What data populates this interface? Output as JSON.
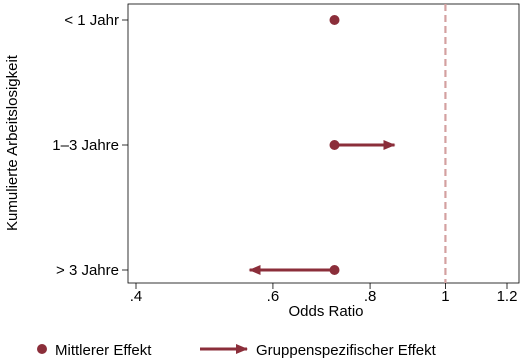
{
  "chart_data": {
    "type": "scatter",
    "title": "",
    "xlabel": "Odds Ratio",
    "ylabel": "Kumulierte Arbeitslosigkeit",
    "x_scale": "log",
    "xlim": [
      0.4,
      1.2
    ],
    "x_ticks": [
      {
        "value": 0.4,
        "label": ".4"
      },
      {
        "value": 0.6,
        "label": ".6"
      },
      {
        "value": 0.8,
        "label": ".8"
      },
      {
        "value": 1.0,
        "label": "1"
      },
      {
        "value": 1.2,
        "label": "1.2"
      }
    ],
    "categories": [
      "< 1 Jahr",
      "1–3 Jahre",
      "> 3 Jahre"
    ],
    "reference_line": {
      "x": 1.0,
      "style": "dashed",
      "color": "#d4a0a0"
    },
    "series": [
      {
        "name": "Mittlerer Effekt",
        "marker": "dot",
        "values": [
          0.72,
          0.72,
          0.72
        ]
      },
      {
        "name": "Gruppenspezifischer Effekt",
        "marker": "arrow",
        "from": [
          0.72,
          0.72,
          0.72
        ],
        "to": [
          0.72,
          0.86,
          0.56
        ]
      }
    ],
    "colors": {
      "marker": "#8b2e3a"
    },
    "grid": false,
    "legend": {
      "position": "bottom"
    }
  }
}
